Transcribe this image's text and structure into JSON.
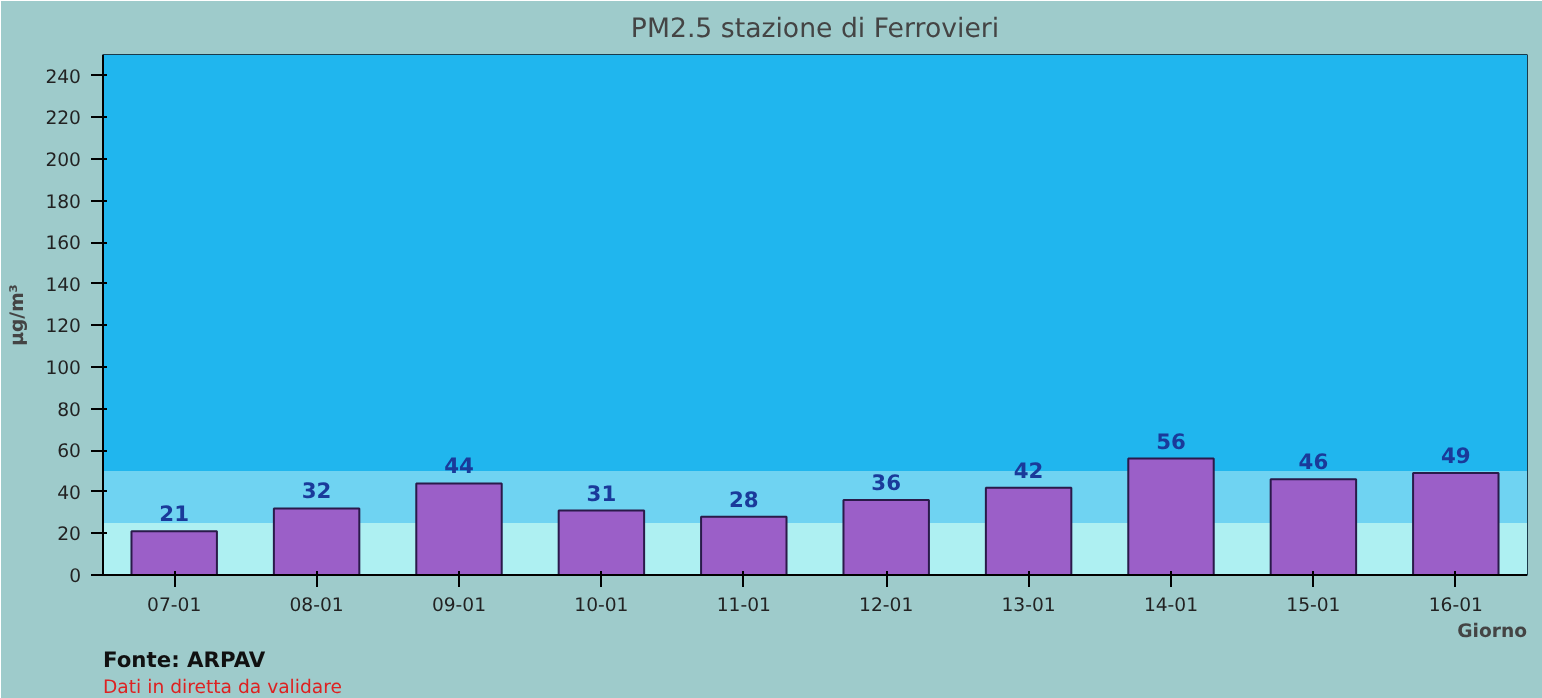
{
  "chart_data": {
    "type": "bar",
    "title": "PM2.5 stazione di Ferrovieri",
    "xlabel": "Giorno",
    "ylabel": "µg/m³",
    "categories": [
      "07-01",
      "08-01",
      "09-01",
      "10-01",
      "11-01",
      "12-01",
      "13-01",
      "14-01",
      "15-01",
      "16-01"
    ],
    "values": [
      21,
      32,
      44,
      31,
      28,
      36,
      42,
      56,
      46,
      49
    ],
    "color": "#9b5fc8",
    "data_labels": true,
    "ylim": [
      0,
      250
    ],
    "yticks": [
      0,
      20,
      40,
      60,
      80,
      100,
      120,
      140,
      160,
      180,
      200,
      220,
      240
    ],
    "bands": [
      {
        "axis": "y",
        "from": 0,
        "to": 25,
        "color": "#aef0f2"
      },
      {
        "axis": "y",
        "from": 25,
        "to": 50,
        "color": "#6fd3f2"
      },
      {
        "axis": "y",
        "from": 50,
        "to": 250,
        "color": "#20b6ee"
      }
    ],
    "annotations": [
      "Fonte: ARPAV",
      "Dati in diretta da validare"
    ]
  }
}
